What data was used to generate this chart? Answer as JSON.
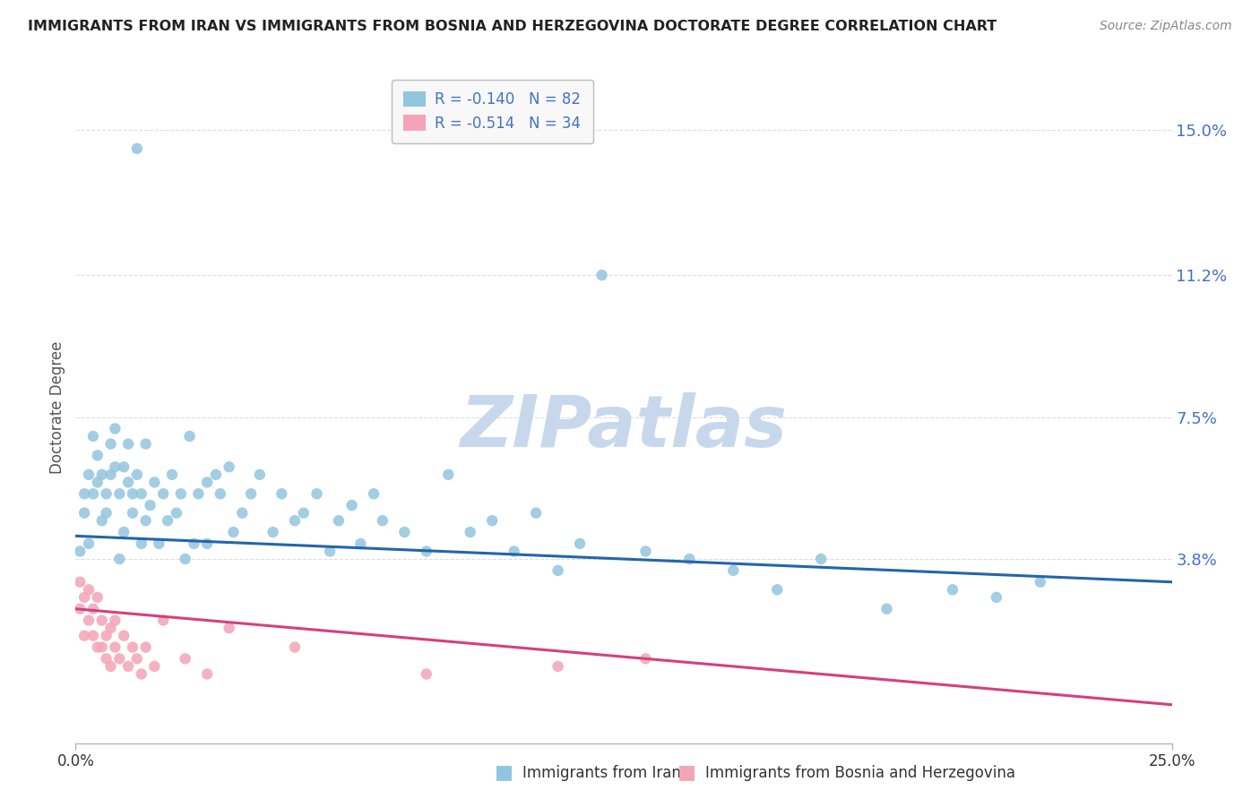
{
  "title": "IMMIGRANTS FROM IRAN VS IMMIGRANTS FROM BOSNIA AND HERZEGOVINA DOCTORATE DEGREE CORRELATION CHART",
  "source": "Source: ZipAtlas.com",
  "ylabel": "Doctorate Degree",
  "ytick_labels": [
    "3.8%",
    "7.5%",
    "11.2%",
    "15.0%"
  ],
  "ytick_values": [
    0.038,
    0.075,
    0.112,
    0.15
  ],
  "xlim": [
    0.0,
    0.25
  ],
  "ylim": [
    -0.01,
    0.165
  ],
  "series1": {
    "label": "Immigrants from Iran",
    "color": "#92c5de",
    "line_color": "#2166ac",
    "R": -0.14,
    "N": 82,
    "x": [
      0.001,
      0.002,
      0.002,
      0.003,
      0.003,
      0.004,
      0.004,
      0.005,
      0.005,
      0.006,
      0.006,
      0.007,
      0.007,
      0.008,
      0.008,
      0.009,
      0.009,
      0.01,
      0.01,
      0.011,
      0.011,
      0.012,
      0.012,
      0.013,
      0.013,
      0.014,
      0.014,
      0.015,
      0.015,
      0.016,
      0.016,
      0.017,
      0.018,
      0.019,
      0.02,
      0.021,
      0.022,
      0.023,
      0.024,
      0.025,
      0.026,
      0.027,
      0.028,
      0.03,
      0.03,
      0.032,
      0.033,
      0.035,
      0.036,
      0.038,
      0.04,
      0.042,
      0.045,
      0.047,
      0.05,
      0.052,
      0.055,
      0.058,
      0.06,
      0.063,
      0.065,
      0.068,
      0.07,
      0.075,
      0.08,
      0.085,
      0.09,
      0.095,
      0.1,
      0.105,
      0.11,
      0.115,
      0.12,
      0.13,
      0.14,
      0.15,
      0.16,
      0.17,
      0.185,
      0.2,
      0.21,
      0.22
    ],
    "y": [
      0.04,
      0.05,
      0.055,
      0.042,
      0.06,
      0.055,
      0.07,
      0.065,
      0.058,
      0.06,
      0.048,
      0.055,
      0.05,
      0.06,
      0.068,
      0.062,
      0.072,
      0.038,
      0.055,
      0.045,
      0.062,
      0.058,
      0.068,
      0.055,
      0.05,
      0.06,
      0.145,
      0.042,
      0.055,
      0.048,
      0.068,
      0.052,
      0.058,
      0.042,
      0.055,
      0.048,
      0.06,
      0.05,
      0.055,
      0.038,
      0.07,
      0.042,
      0.055,
      0.058,
      0.042,
      0.06,
      0.055,
      0.062,
      0.045,
      0.05,
      0.055,
      0.06,
      0.045,
      0.055,
      0.048,
      0.05,
      0.055,
      0.04,
      0.048,
      0.052,
      0.042,
      0.055,
      0.048,
      0.045,
      0.04,
      0.06,
      0.045,
      0.048,
      0.04,
      0.05,
      0.035,
      0.042,
      0.112,
      0.04,
      0.038,
      0.035,
      0.03,
      0.038,
      0.025,
      0.03,
      0.028,
      0.032
    ]
  },
  "series2": {
    "label": "Immigrants from Bosnia and Herzegovina",
    "color": "#f4a4b8",
    "line_color": "#d6407a",
    "R": -0.514,
    "N": 34,
    "x": [
      0.001,
      0.001,
      0.002,
      0.002,
      0.003,
      0.003,
      0.004,
      0.004,
      0.005,
      0.005,
      0.006,
      0.006,
      0.007,
      0.007,
      0.008,
      0.008,
      0.009,
      0.009,
      0.01,
      0.011,
      0.012,
      0.013,
      0.014,
      0.015,
      0.016,
      0.018,
      0.02,
      0.025,
      0.03,
      0.035,
      0.05,
      0.08,
      0.11,
      0.13
    ],
    "y": [
      0.025,
      0.032,
      0.028,
      0.018,
      0.022,
      0.03,
      0.018,
      0.025,
      0.015,
      0.028,
      0.022,
      0.015,
      0.018,
      0.012,
      0.02,
      0.01,
      0.015,
      0.022,
      0.012,
      0.018,
      0.01,
      0.015,
      0.012,
      0.008,
      0.015,
      0.01,
      0.022,
      0.012,
      0.008,
      0.02,
      0.015,
      0.008,
      0.01,
      0.012
    ]
  },
  "background_color": "#ffffff",
  "grid_color": "#dddddd",
  "title_color": "#222222",
  "source_color": "#888888",
  "watermark": "ZIPatlas",
  "watermark_color": "#c8d8ec"
}
